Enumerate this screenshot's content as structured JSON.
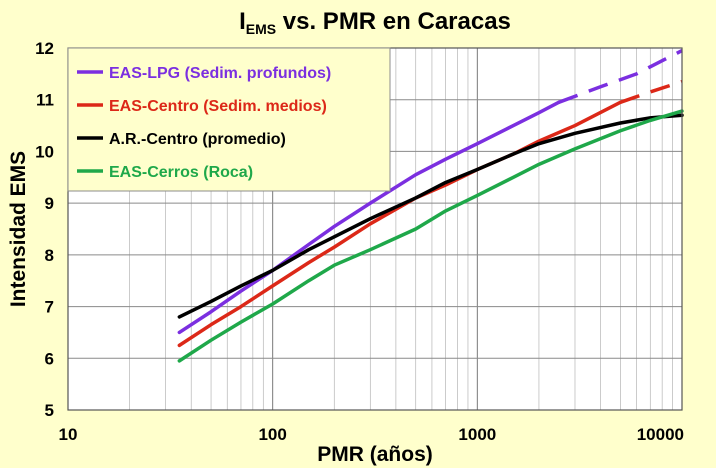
{
  "chart_data": {
    "type": "line",
    "title": {
      "main": "I",
      "subscript": "EMS",
      "rest": " vs. PMR en Caracas"
    },
    "xlabel": "PMR (años)",
    "ylabel": "Intensidad EMS",
    "xscale": "log",
    "xlim": [
      10,
      10000
    ],
    "ylim": [
      5,
      12
    ],
    "xticks": [
      "10",
      "100",
      "1000",
      "10000"
    ],
    "yticks": [
      "5",
      "6",
      "7",
      "8",
      "9",
      "10",
      "11",
      "12"
    ],
    "grid": true,
    "legend_position": "top-left",
    "series": [
      {
        "name": "EAS-LPG (Sedim. profundos)",
        "color": "#7B2FE0",
        "x": [
          35,
          50,
          70,
          100,
          150,
          200,
          300,
          500,
          700,
          1000,
          1500,
          2000,
          2500
        ],
        "y": [
          6.5,
          6.9,
          7.3,
          7.7,
          8.2,
          8.55,
          9.0,
          9.55,
          9.85,
          10.15,
          10.5,
          10.75,
          10.95
        ],
        "dashed": {
          "x": [
            2500,
            4000,
            6000,
            10000
          ],
          "y": [
            10.95,
            11.25,
            11.5,
            11.95
          ]
        }
      },
      {
        "name": "EAS-Centro (Sedim. medios)",
        "color": "#DC2818",
        "x": [
          35,
          50,
          70,
          100,
          150,
          200,
          300,
          500,
          700,
          1000,
          1500,
          2000,
          3000,
          5000
        ],
        "y": [
          6.25,
          6.65,
          7.0,
          7.4,
          7.85,
          8.15,
          8.6,
          9.1,
          9.35,
          9.65,
          9.95,
          10.2,
          10.5,
          10.95
        ],
        "dashed": {
          "x": [
            5000,
            7000,
            10000
          ],
          "y": [
            10.95,
            11.15,
            11.35
          ]
        }
      },
      {
        "name": "A.R.-Centro (promedio)",
        "color": "#000000",
        "x": [
          35,
          50,
          70,
          100,
          150,
          200,
          300,
          500,
          700,
          1000,
          1500,
          2000,
          3000,
          5000,
          7000,
          10000
        ],
        "y": [
          6.8,
          7.1,
          7.4,
          7.7,
          8.1,
          8.35,
          8.7,
          9.1,
          9.4,
          9.65,
          9.95,
          10.15,
          10.35,
          10.55,
          10.65,
          10.7
        ]
      },
      {
        "name": "EAS-Cerros (Roca)",
        "color": "#1FA84A",
        "x": [
          35,
          50,
          70,
          100,
          150,
          200,
          300,
          500,
          700,
          1000,
          1500,
          2000,
          3000,
          5000,
          7000,
          10000
        ],
        "y": [
          5.95,
          6.35,
          6.7,
          7.05,
          7.5,
          7.8,
          8.1,
          8.5,
          8.85,
          9.15,
          9.5,
          9.75,
          10.05,
          10.4,
          10.6,
          10.78
        ]
      }
    ]
  }
}
